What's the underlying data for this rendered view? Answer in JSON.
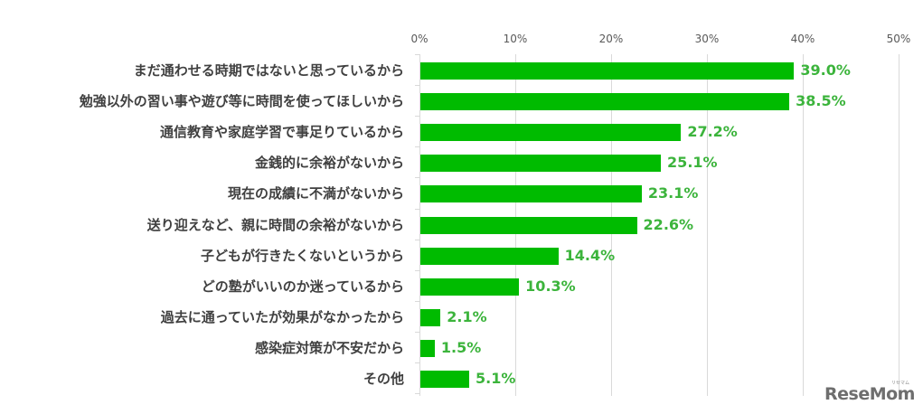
{
  "chart_data": {
    "type": "bar",
    "orientation": "horizontal",
    "title": "",
    "xlabel": "",
    "ylabel": "",
    "xlim": [
      0,
      50
    ],
    "x_ticks": [
      "0%",
      "10%",
      "20%",
      "30%",
      "40%",
      "50%"
    ],
    "grid": true,
    "legend": null,
    "color": "#00bb00",
    "label_color": "#3cb43c",
    "categories": [
      "まだ通わせる時期ではないと思っているから",
      "勉強以外の習い事や遊び等に時間を使ってほしいから",
      "通信教育や家庭学習で事足りているから",
      "金銭的に余裕がないから",
      "現在の成績に不満がないから",
      "送り迎えなど、親に時間の余裕がないから",
      "子どもが行きたくないというから",
      "どの塾がいいのか迷っているから",
      "過去に通っていたが効果がなかったから",
      "感染症対策が不安だから",
      "その他"
    ],
    "values": [
      39.0,
      38.5,
      27.2,
      25.1,
      23.1,
      22.6,
      14.4,
      10.3,
      2.1,
      1.5,
      5.1
    ],
    "value_labels": [
      "39.0%",
      "38.5%",
      "27.2%",
      "25.1%",
      "23.1%",
      "22.6%",
      "14.4%",
      "10.3%",
      "2.1%",
      "1.5%",
      "5.1%"
    ]
  },
  "watermark": {
    "text": "ReseMom",
    "subtext": "リセマム"
  }
}
